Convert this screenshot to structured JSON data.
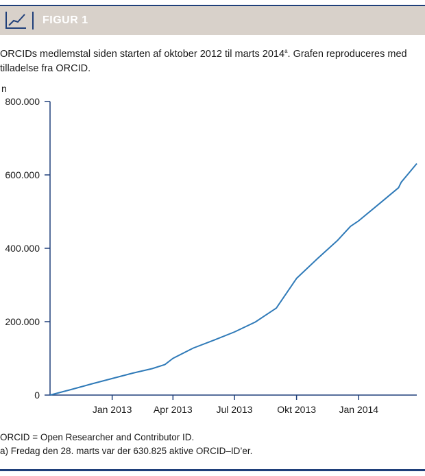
{
  "header": {
    "title": "FIGUR 1",
    "icon": "line-chart-icon"
  },
  "caption": {
    "text": "ORCIDs medlemstal siden starten af oktober 2012 til marts 2014",
    "superscript": "a",
    "text_after": ". Grafen reproduceres med tilladelse fra ORCID."
  },
  "colors": {
    "header_bg": "#d8d1ca",
    "accent": "#1f3f7a",
    "line": "#2f7ab8"
  },
  "chart_data": {
    "type": "line",
    "ylabel": "n",
    "xlabel": "",
    "ylim": [
      0,
      800000
    ],
    "yticks": [
      0,
      200000,
      400000,
      600000,
      800000
    ],
    "ytick_labels": [
      "0",
      "200.000",
      "400.000",
      "600.000",
      "800.000"
    ],
    "xticks": [
      "2013-01-01",
      "2013-04-01",
      "2013-07-01",
      "2013-10-01",
      "2014-01-01"
    ],
    "xtick_labels": [
      "Jan 2013",
      "Apr 2013",
      "Jul 2013",
      "Okt 2013",
      "Jan 2014"
    ],
    "xlim": [
      "2012-10-01",
      "2014-03-28"
    ],
    "series": [
      {
        "x": [
          "2012-10-01",
          "2012-11-01",
          "2012-12-01",
          "2013-01-01",
          "2013-02-01",
          "2013-03-01",
          "2013-03-20",
          "2013-04-01",
          "2013-05-01",
          "2013-06-01",
          "2013-07-01",
          "2013-08-01",
          "2013-09-01",
          "2013-10-01",
          "2013-11-01",
          "2013-12-01",
          "2013-12-20",
          "2014-01-01",
          "2014-02-01",
          "2014-03-01",
          "2014-03-05",
          "2014-03-28"
        ],
        "y": [
          0,
          15000,
          30000,
          45000,
          60000,
          72000,
          83000,
          100000,
          128000,
          150000,
          172000,
          199000,
          237000,
          318000,
          372000,
          422000,
          460000,
          475000,
          522000,
          565000,
          580000,
          630825
        ]
      }
    ]
  },
  "footnotes": [
    "ORCID = Open Researcher and Contributor ID.",
    "a) Fredag den 28. marts var der 630.825 aktive ORCID–ID’er."
  ]
}
